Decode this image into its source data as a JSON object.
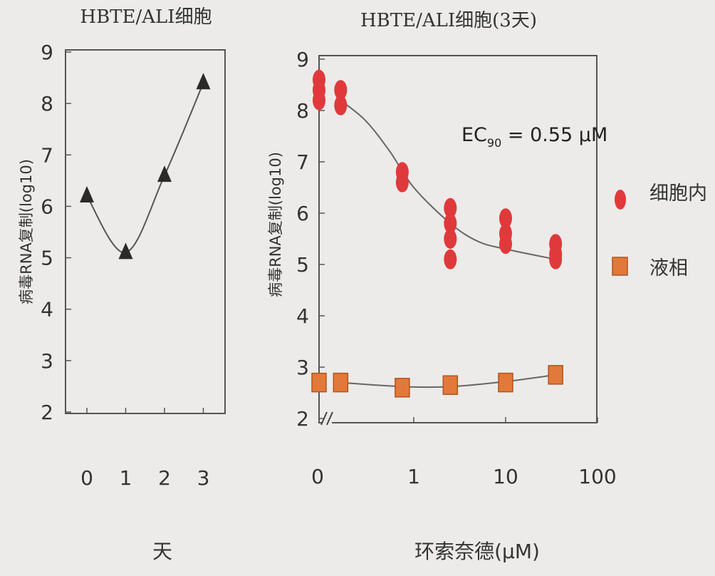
{
  "chart_data": [
    {
      "type": "line",
      "title": "HBTE/ALI细胞",
      "xlabel": "天",
      "ylabel": "病毒RNA复制(log10)",
      "x": [
        0,
        1,
        2,
        3
      ],
      "xticks": [
        "0",
        "1",
        "2",
        "3"
      ],
      "ylim": [
        2,
        9
      ],
      "yticks": [
        "2",
        "3",
        "4",
        "5",
        "6",
        "7",
        "8",
        "9"
      ],
      "series": [
        {
          "values": [
            6.2,
            5.1,
            6.6,
            8.4
          ],
          "marker": "triangle",
          "color": "#2a2a2a"
        }
      ]
    },
    {
      "type": "scatter",
      "title": "HBTE/ALI细胞(3天)",
      "xlabel": "环索奈德(μM)",
      "ylabel": "病毒RNA复制(log10)",
      "xscale": "log",
      "axis_break": true,
      "xticks": [
        "0",
        "1",
        "10",
        "100"
      ],
      "ylim": [
        2,
        9
      ],
      "yticks": [
        "2",
        "3",
        "4",
        "5",
        "6",
        "7",
        "8",
        "9"
      ],
      "annotation": {
        "prefix": "EC",
        "subscript": "90",
        "suffix": " = 0.55 μM"
      },
      "legend": [
        "细胞内",
        "液相"
      ],
      "legend_position": "right",
      "series": [
        {
          "name": "细胞内",
          "marker": "circle",
          "color": "#e0393b",
          "points": [
            {
              "x": 0,
              "y": 8.6
            },
            {
              "x": 0,
              "y": 8.4
            },
            {
              "x": 0,
              "y": 8.2
            },
            {
              "x": 0.16,
              "y": 8.4
            },
            {
              "x": 0.16,
              "y": 8.1
            },
            {
              "x": 0.75,
              "y": 6.8
            },
            {
              "x": 0.75,
              "y": 6.6
            },
            {
              "x": 2.5,
              "y": 6.1
            },
            {
              "x": 2.5,
              "y": 5.8
            },
            {
              "x": 2.5,
              "y": 5.5
            },
            {
              "x": 2.5,
              "y": 5.1
            },
            {
              "x": 10,
              "y": 5.9
            },
            {
              "x": 10,
              "y": 5.6
            },
            {
              "x": 10,
              "y": 5.4
            },
            {
              "x": 35,
              "y": 5.4
            },
            {
              "x": 35,
              "y": 5.2
            },
            {
              "x": 35,
              "y": 5.1
            }
          ],
          "fit": [
            {
              "x": 0.16,
              "y": 8.2
            },
            {
              "x": 0.3,
              "y": 7.8
            },
            {
              "x": 0.55,
              "y": 7.2
            },
            {
              "x": 1.0,
              "y": 6.5
            },
            {
              "x": 2.5,
              "y": 5.8
            },
            {
              "x": 5,
              "y": 5.45
            },
            {
              "x": 10,
              "y": 5.3
            },
            {
              "x": 35,
              "y": 5.1
            }
          ]
        },
        {
          "name": "液相",
          "marker": "square",
          "color": "#e2793a",
          "points": [
            {
              "x": 0,
              "y": 2.7
            },
            {
              "x": 0.16,
              "y": 2.7
            },
            {
              "x": 0.75,
              "y": 2.6
            },
            {
              "x": 2.5,
              "y": 2.65
            },
            {
              "x": 10,
              "y": 2.7
            },
            {
              "x": 35,
              "y": 2.85
            }
          ],
          "fit": [
            {
              "x": 0.16,
              "y": 2.7
            },
            {
              "x": 0.75,
              "y": 2.62
            },
            {
              "x": 2.5,
              "y": 2.62
            },
            {
              "x": 10,
              "y": 2.72
            },
            {
              "x": 35,
              "y": 2.85
            }
          ]
        }
      ]
    }
  ]
}
